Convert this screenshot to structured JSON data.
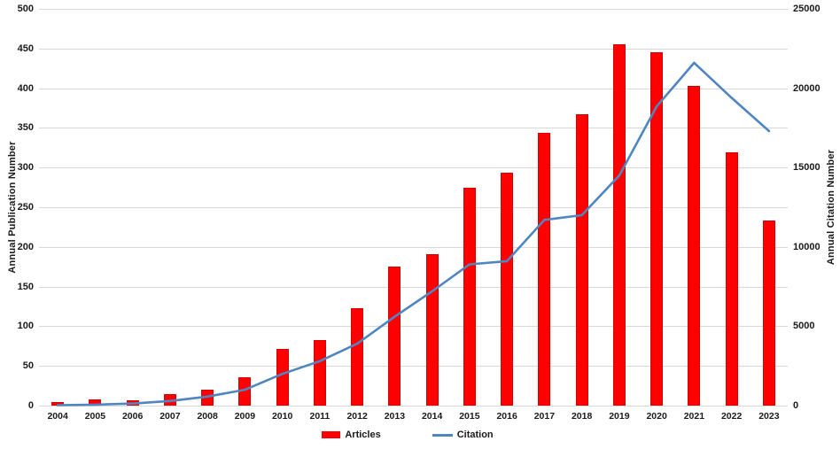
{
  "chart_data": {
    "type": "bar",
    "subtype": "combo-bar-line-dual-axis",
    "categories": [
      "2004",
      "2005",
      "2006",
      "2007",
      "2008",
      "2009",
      "2010",
      "2011",
      "2012",
      "2013",
      "2014",
      "2015",
      "2016",
      "2017",
      "2018",
      "2019",
      "2020",
      "2021",
      "2022",
      "2023"
    ],
    "series": [
      {
        "name": "Articles",
        "type": "bar",
        "axis": "left",
        "color": "#fe0000",
        "values": [
          5,
          8,
          7,
          15,
          20,
          36,
          71,
          83,
          123,
          175,
          191,
          274,
          294,
          344,
          367,
          455,
          445,
          403,
          319,
          233
        ]
      },
      {
        "name": "Citation",
        "type": "line",
        "axis": "right",
        "color": "#4f86c0",
        "values": [
          30,
          60,
          130,
          290,
          570,
          1000,
          2000,
          2800,
          3900,
          5600,
          7200,
          8900,
          9100,
          11700,
          12000,
          14500,
          18850,
          21600,
          19400,
          17300
        ]
      }
    ],
    "left_axis": {
      "label": "Annual Publication Number",
      "min": 0,
      "max": 500,
      "step": 50
    },
    "right_axis": {
      "label": "Annual Citation Number",
      "min": 0,
      "max": 25000,
      "step": 5000
    },
    "grid": true,
    "gridline_color": "#d9d9d9",
    "legend_position": "bottom"
  },
  "legend": {
    "items": [
      {
        "label": "Articles",
        "color": "#fe0000",
        "swatch": "bar"
      },
      {
        "label": "Citation",
        "color": "#4f86c0",
        "swatch": "line"
      }
    ]
  }
}
